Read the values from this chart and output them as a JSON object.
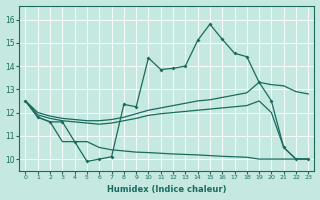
{
  "xlabel": "Humidex (Indice chaleur)",
  "bg_color": "#c5e8e0",
  "line_color": "#1a6b5e",
  "xlim": [
    -0.5,
    23.5
  ],
  "ylim": [
    9.5,
    16.6
  ],
  "xticks": [
    0,
    1,
    2,
    3,
    4,
    5,
    6,
    7,
    8,
    9,
    10,
    11,
    12,
    13,
    14,
    15,
    16,
    17,
    18,
    19,
    20,
    21,
    22,
    23
  ],
  "yticks": [
    10,
    11,
    12,
    13,
    14,
    15,
    16
  ],
  "line_wavy_x": [
    0,
    1,
    2,
    3,
    4,
    5,
    6,
    7,
    8,
    9,
    10,
    11,
    12,
    13,
    14,
    15,
    16,
    17,
    18,
    19,
    20,
    21,
    22,
    23
  ],
  "line_wavy_y": [
    12.5,
    11.8,
    11.6,
    11.6,
    10.75,
    9.9,
    10.0,
    10.1,
    12.35,
    12.25,
    14.35,
    13.85,
    13.9,
    14.0,
    15.1,
    15.8,
    15.15,
    14.55,
    14.4,
    13.3,
    12.5,
    10.5,
    10.0,
    10.0
  ],
  "line_upper_x": [
    0,
    1,
    2,
    3,
    4,
    5,
    6,
    7,
    8,
    9,
    10,
    11,
    12,
    13,
    14,
    15,
    16,
    17,
    18,
    19,
    20,
    21,
    22,
    23
  ],
  "line_upper_y": [
    12.5,
    12.0,
    11.85,
    11.75,
    11.7,
    11.65,
    11.65,
    11.7,
    11.8,
    11.95,
    12.1,
    12.2,
    12.3,
    12.4,
    12.5,
    12.55,
    12.65,
    12.75,
    12.85,
    13.3,
    13.2,
    13.15,
    12.9,
    12.8
  ],
  "line_mid_x": [
    0,
    1,
    2,
    3,
    4,
    5,
    6,
    7,
    8,
    9,
    10,
    11,
    12,
    13,
    14,
    15,
    16,
    17,
    18,
    19,
    20,
    21,
    22,
    23
  ],
  "line_mid_y": [
    12.5,
    11.9,
    11.75,
    11.65,
    11.6,
    11.55,
    11.5,
    11.55,
    11.65,
    11.75,
    11.88,
    11.95,
    12.0,
    12.05,
    12.1,
    12.15,
    12.2,
    12.25,
    12.3,
    12.5,
    12.0,
    10.5,
    10.0,
    10.0
  ],
  "line_lower_x": [
    0,
    1,
    2,
    3,
    4,
    5,
    6,
    7,
    8,
    9,
    10,
    11,
    12,
    13,
    14,
    15,
    16,
    17,
    18,
    19,
    20,
    21,
    22,
    23
  ],
  "line_lower_y": [
    12.5,
    11.8,
    11.6,
    10.75,
    10.75,
    10.75,
    10.5,
    10.4,
    10.35,
    10.3,
    10.28,
    10.25,
    10.22,
    10.2,
    10.18,
    10.15,
    10.12,
    10.1,
    10.08,
    10.0,
    10.0,
    10.0,
    10.0,
    10.0
  ]
}
